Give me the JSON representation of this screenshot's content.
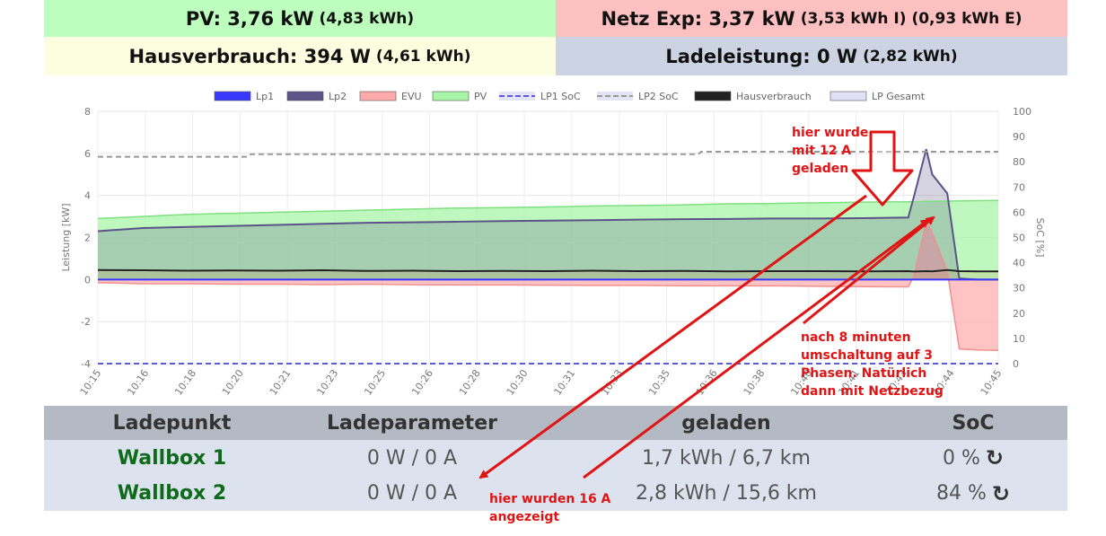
{
  "tiles": {
    "pv": {
      "main": "PV: 3,76 kW",
      "sub": "(4,83 kWh)",
      "color": "#bdfdbe"
    },
    "netz": {
      "main": "Netz Exp: 3,37 kW",
      "sub": "(3,53 kWh I) (0,93 kWh E)",
      "color": "#fdc0c0"
    },
    "haus": {
      "main": "Hausverbrauch: 394 W",
      "sub": "(4,61 kWh)",
      "color": "#fdfde0"
    },
    "lade": {
      "main": "Ladeleistung: 0 W",
      "sub": "(2,82 kWh)",
      "color": "#ccd4e3"
    }
  },
  "chart_data": {
    "type": "line",
    "ylabel": "Leistung [kW]",
    "y2label": "SoC [%]",
    "ylim": [
      -4,
      8
    ],
    "y2lim": [
      0,
      100
    ],
    "yticks": [
      "-4",
      "-2",
      "0",
      "2",
      "4",
      "6",
      "8"
    ],
    "y2ticks": [
      "0",
      "10",
      "20",
      "30",
      "40",
      "50",
      "60",
      "70",
      "80",
      "90",
      "100"
    ],
    "xticks": [
      "10:15",
      "10:16",
      "10:18",
      "10:20",
      "10:21",
      "10:23",
      "10:25",
      "10:26",
      "10:28",
      "10:30",
      "10:31",
      "10:33",
      "10:35",
      "10:36",
      "10:38",
      "10:40",
      "10:41",
      "10:43",
      "10:44",
      "10:45"
    ],
    "legend": [
      {
        "name": "Lp1",
        "color": "#3838ff",
        "style": "fill"
      },
      {
        "name": "Lp2",
        "color": "#5c5488",
        "style": "fill"
      },
      {
        "name": "EVU",
        "color": "#ffaaaa",
        "style": "fill"
      },
      {
        "name": "PV",
        "color": "#a8f5a8",
        "style": "fill"
      },
      {
        "name": "LP1 SoC",
        "color": "#5a5ae8",
        "style": "dash"
      },
      {
        "name": "LP2 SoC",
        "color": "#999999",
        "style": "dash"
      },
      {
        "name": "Hausverbrauch",
        "color": "#222222",
        "style": "fill"
      },
      {
        "name": "LP Gesamt",
        "color": "#e0e0f8",
        "style": "fill"
      }
    ],
    "legend_position": "top",
    "x_minutes": [
      0,
      1.5,
      3,
      4.5,
      6,
      7.5,
      9,
      10.5,
      12,
      13.5,
      15,
      16.5,
      18,
      19.5,
      21,
      22.5,
      24,
      25.5,
      27,
      27.2,
      27.6,
      27.8,
      28.3,
      28.7,
      29.3,
      30
    ],
    "series": [
      {
        "name": "PV",
        "values": [
          2.9,
          3.0,
          3.1,
          3.15,
          3.2,
          3.25,
          3.3,
          3.35,
          3.4,
          3.42,
          3.45,
          3.5,
          3.52,
          3.55,
          3.6,
          3.62,
          3.65,
          3.68,
          3.7,
          3.7,
          3.72,
          3.72,
          3.73,
          3.74,
          3.75,
          3.76
        ]
      },
      {
        "name": "Hausverbrauch",
        "values": [
          0.45,
          0.44,
          0.42,
          0.43,
          0.42,
          0.44,
          0.41,
          0.42,
          0.4,
          0.41,
          0.4,
          0.42,
          0.4,
          0.41,
          0.39,
          0.4,
          0.4,
          0.39,
          0.4,
          0.38,
          0.4,
          0.39,
          0.45,
          0.4,
          0.39,
          0.39
        ]
      },
      {
        "name": "EVU",
        "values": [
          -0.15,
          -0.2,
          -0.2,
          -0.22,
          -0.22,
          -0.24,
          -0.22,
          -0.25,
          -0.26,
          -0.26,
          -0.27,
          -0.28,
          -0.28,
          -0.3,
          -0.3,
          -0.3,
          -0.32,
          -0.34,
          -0.35,
          0.2,
          2.8,
          2.2,
          0.4,
          -3.3,
          -3.35,
          -3.37
        ]
      },
      {
        "name": "Lp2",
        "values": [
          2.3,
          2.45,
          2.5,
          2.55,
          2.6,
          2.65,
          2.7,
          2.72,
          2.75,
          2.78,
          2.8,
          2.82,
          2.85,
          2.87,
          2.88,
          2.9,
          2.9,
          2.92,
          2.95,
          4.0,
          6.2,
          5.0,
          4.1,
          0.05,
          0.0,
          0.0
        ]
      },
      {
        "name": "Lp1",
        "values": [
          0,
          0,
          0,
          0,
          0,
          0,
          0,
          0,
          0,
          0,
          0,
          0,
          0,
          0,
          0,
          0,
          0,
          0,
          0,
          0,
          0,
          0,
          0,
          0,
          0,
          0
        ]
      },
      {
        "name": "LP2 SoC",
        "x_minutes": [
          0,
          5,
          5.1,
          20,
          20.1,
          30
        ],
        "values": [
          82,
          82,
          83,
          83,
          84,
          84
        ]
      },
      {
        "name": "LP1 SoC",
        "x_minutes": [
          0,
          30
        ],
        "values": [
          0,
          0
        ]
      }
    ]
  },
  "annotations": {
    "a1": "hier wurde\nmit 12 A\ngeladen",
    "a2": "nach 8 minuten\numschaltung auf 3\nPhasen. Natürlich\ndann mit Netzbezug",
    "a3": "hier wurden 16 A\nangezeigt",
    "color": "#e01414"
  },
  "table": {
    "headers": [
      "Ladepunkt",
      "Ladeparameter",
      "geladen",
      "SoC"
    ],
    "rows": [
      {
        "name": "Wallbox 1",
        "param": "0 W / 0 A",
        "geladen": "1,7 kWh / 6,7 km",
        "soc": "0 %"
      },
      {
        "name": "Wallbox 2",
        "param": "0 W / 0 A",
        "geladen": "2,8 kWh / 15,6 km",
        "soc": "84 %"
      }
    ]
  }
}
